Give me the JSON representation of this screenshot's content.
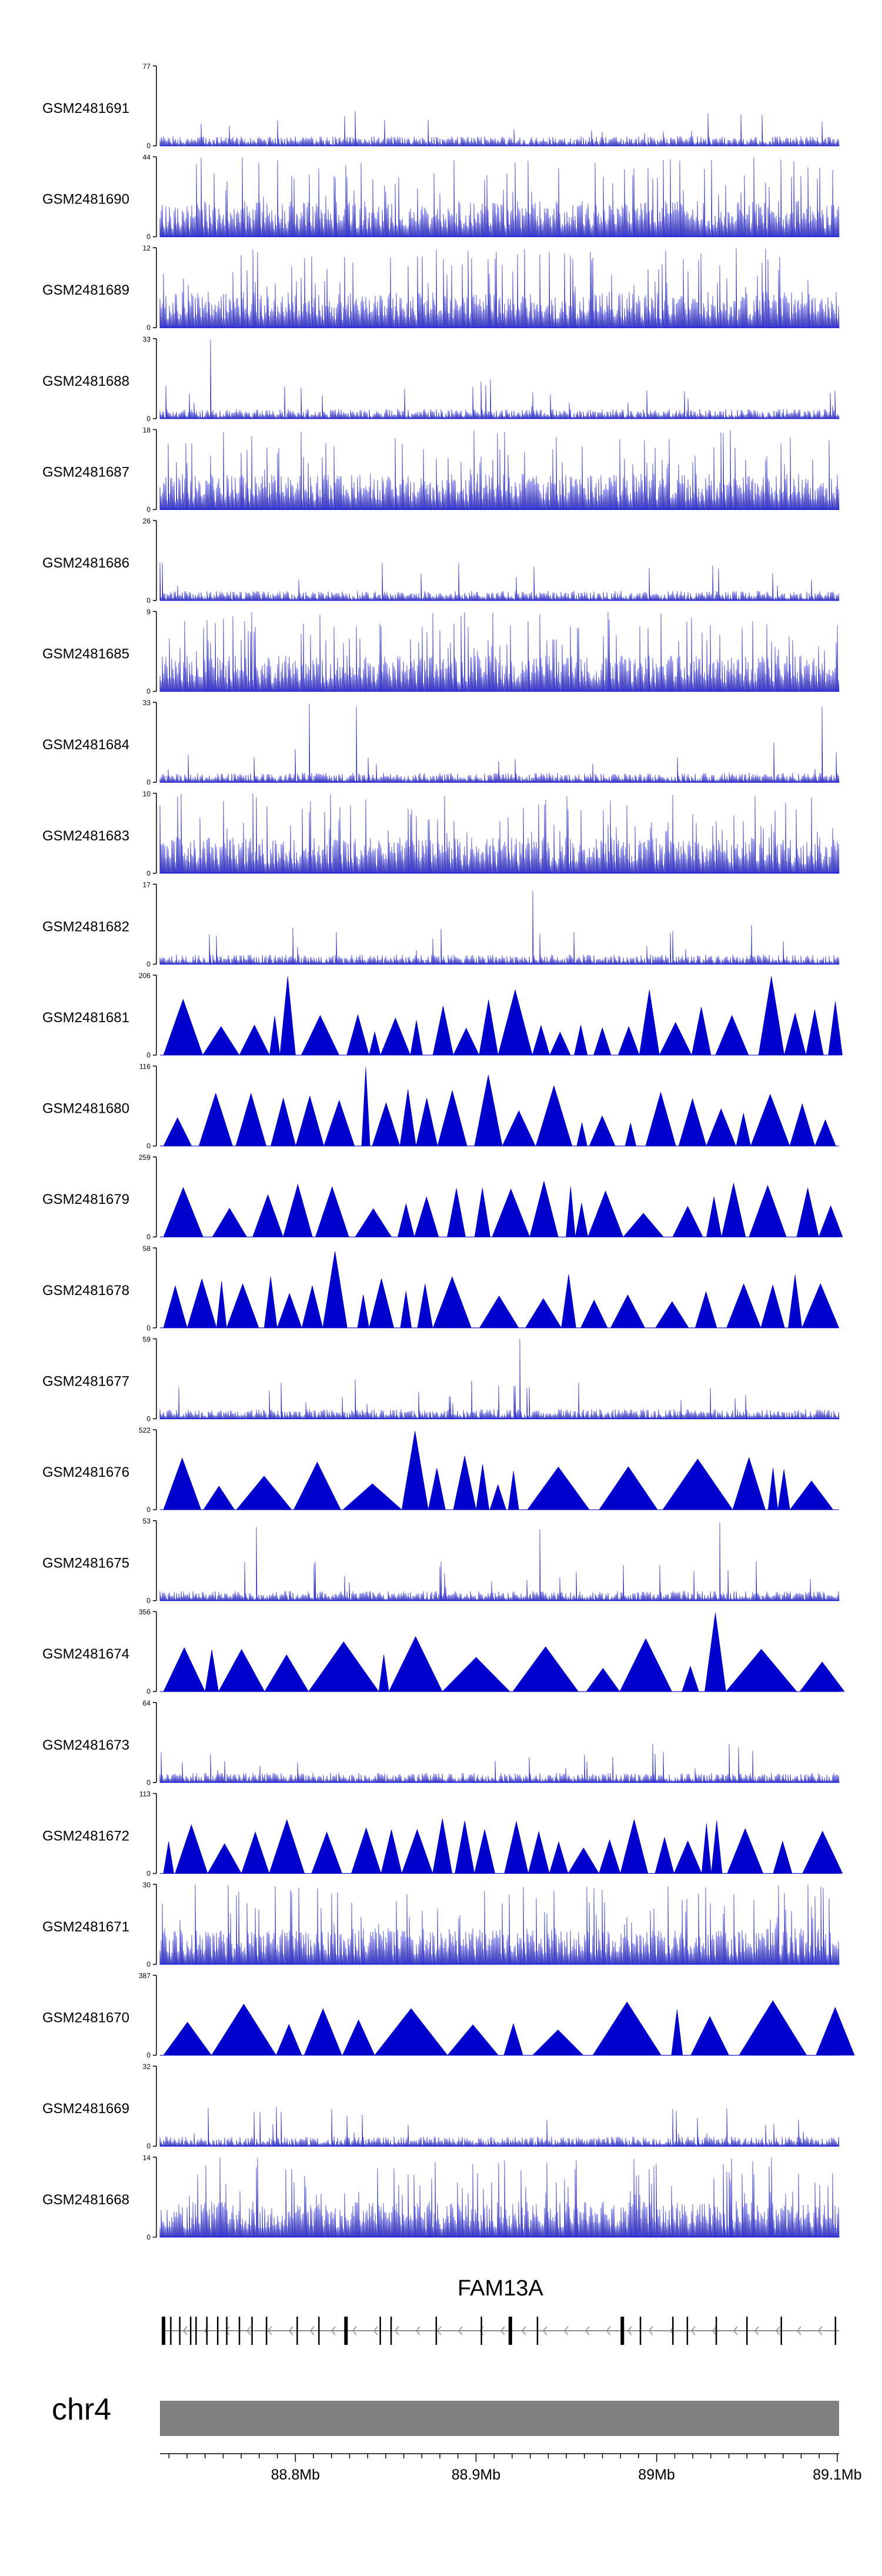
{
  "colors": {
    "signal": "#0000cc",
    "axis": "#000000",
    "gene_model": "#000000",
    "intron_arrow": "#8c8c8c",
    "chromosome_bar": "#808080",
    "background": "#ffffff"
  },
  "chart_data": {
    "type": "area",
    "title": "",
    "style_note_values": "sample_styles",
    "tracks": [
      {
        "name": "GSM2481691",
        "ymax": 77,
        "ymin": 0,
        "style": "noise"
      },
      {
        "name": "GSM2481690",
        "ymax": 44,
        "ymin": 0,
        "style": "dense"
      },
      {
        "name": "GSM2481689",
        "ymax": 12,
        "ymin": 0,
        "style": "dense"
      },
      {
        "name": "GSM2481688",
        "ymax": 33,
        "ymin": 0,
        "style": "noise"
      },
      {
        "name": "GSM2481687",
        "ymax": 18,
        "ymin": 0,
        "style": "dense"
      },
      {
        "name": "GSM2481686",
        "ymax": 26,
        "ymin": 0,
        "style": "noise"
      },
      {
        "name": "GSM2481685",
        "ymax": 9,
        "ymin": 0,
        "style": "dense"
      },
      {
        "name": "GSM2481684",
        "ymax": 33,
        "ymin": 0,
        "style": "noise"
      },
      {
        "name": "GSM2481683",
        "ymax": 10,
        "ymin": 0,
        "style": "dense"
      },
      {
        "name": "GSM2481682",
        "ymax": 17,
        "ymin": 0,
        "style": "noise"
      },
      {
        "name": "GSM2481681",
        "ymax": 206,
        "ymin": 0,
        "style": "triangles"
      },
      {
        "name": "GSM2481680",
        "ymax": 116,
        "ymin": 0,
        "style": "triangles"
      },
      {
        "name": "GSM2481679",
        "ymax": 259,
        "ymin": 0,
        "style": "triangles"
      },
      {
        "name": "GSM2481678",
        "ymax": 58,
        "ymin": 0,
        "style": "triangles"
      },
      {
        "name": "GSM2481677",
        "ymax": 59,
        "ymin": 0,
        "style": "noise"
      },
      {
        "name": "GSM2481676",
        "ymax": 522,
        "ymin": 0,
        "style": "triangles"
      },
      {
        "name": "GSM2481675",
        "ymax": 53,
        "ymin": 0,
        "style": "noise"
      },
      {
        "name": "GSM2481674",
        "ymax": 356,
        "ymin": 0,
        "style": "triangles"
      },
      {
        "name": "GSM2481673",
        "ymax": 64,
        "ymin": 0,
        "style": "noise"
      },
      {
        "name": "GSM2481672",
        "ymax": 113,
        "ymin": 0,
        "style": "triangles"
      },
      {
        "name": "GSM2481671",
        "ymax": 30,
        "ymin": 0,
        "style": "dense"
      },
      {
        "name": "GSM2481670",
        "ymax": 387,
        "ymin": 0,
        "style": "triangles"
      },
      {
        "name": "GSM2481669",
        "ymax": 32,
        "ymin": 0,
        "style": "noise"
      },
      {
        "name": "GSM2481668",
        "ymax": 14,
        "ymin": 0,
        "style": "dense"
      }
    ],
    "gene": {
      "name": "FAM13A",
      "strand": "-",
      "exons_mb": [
        88.727,
        88.731,
        88.736,
        88.742,
        88.745,
        88.751,
        88.757,
        88.762,
        88.769,
        88.776,
        88.784,
        88.801,
        88.813,
        88.828,
        88.847,
        88.853,
        88.878,
        88.903,
        88.919,
        88.934,
        88.981,
        88.991,
        89.009,
        89.017,
        89.033,
        89.05,
        89.069,
        89.099
      ]
    },
    "chromosome": "chr4",
    "x_axis": {
      "range_mb": [
        88.725,
        89.101
      ],
      "ticks_mb": [
        88.8,
        88.9,
        89.0,
        89.1
      ],
      "tick_labels": [
        "88.8Mb",
        "88.9Mb",
        "89Mb",
        "89.1Mb"
      ]
    }
  }
}
